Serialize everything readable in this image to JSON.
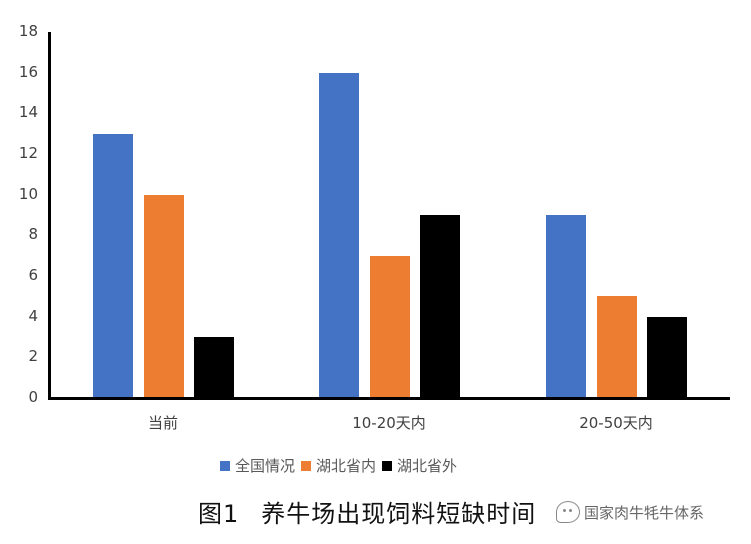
{
  "chart_data": {
    "type": "bar",
    "title": "图1   养牛场出现饲料短缺时间",
    "xlabel": "",
    "ylabel": "",
    "categories": [
      "当前",
      "10-20天内",
      "20-50天内"
    ],
    "series": [
      {
        "name": "全国情况",
        "color": "#4472C4",
        "values": [
          13,
          16,
          9
        ]
      },
      {
        "name": "湖北省内",
        "color": "#ED7D31",
        "values": [
          10,
          7,
          5
        ]
      },
      {
        "name": "湖北省外",
        "color": "#000000",
        "values": [
          3,
          9,
          4
        ]
      }
    ],
    "ylim": [
      0,
      18
    ],
    "yticks": [
      0,
      2,
      4,
      6,
      8,
      10,
      12,
      14,
      16,
      18
    ],
    "grid": false,
    "legend_position": "bottom"
  },
  "caption": {
    "figure_number": "图1",
    "text": "养牛场出现饲料短缺时间"
  },
  "watermark": {
    "icon": "wechat-icon",
    "text": "国家肉牛牦牛体系"
  }
}
